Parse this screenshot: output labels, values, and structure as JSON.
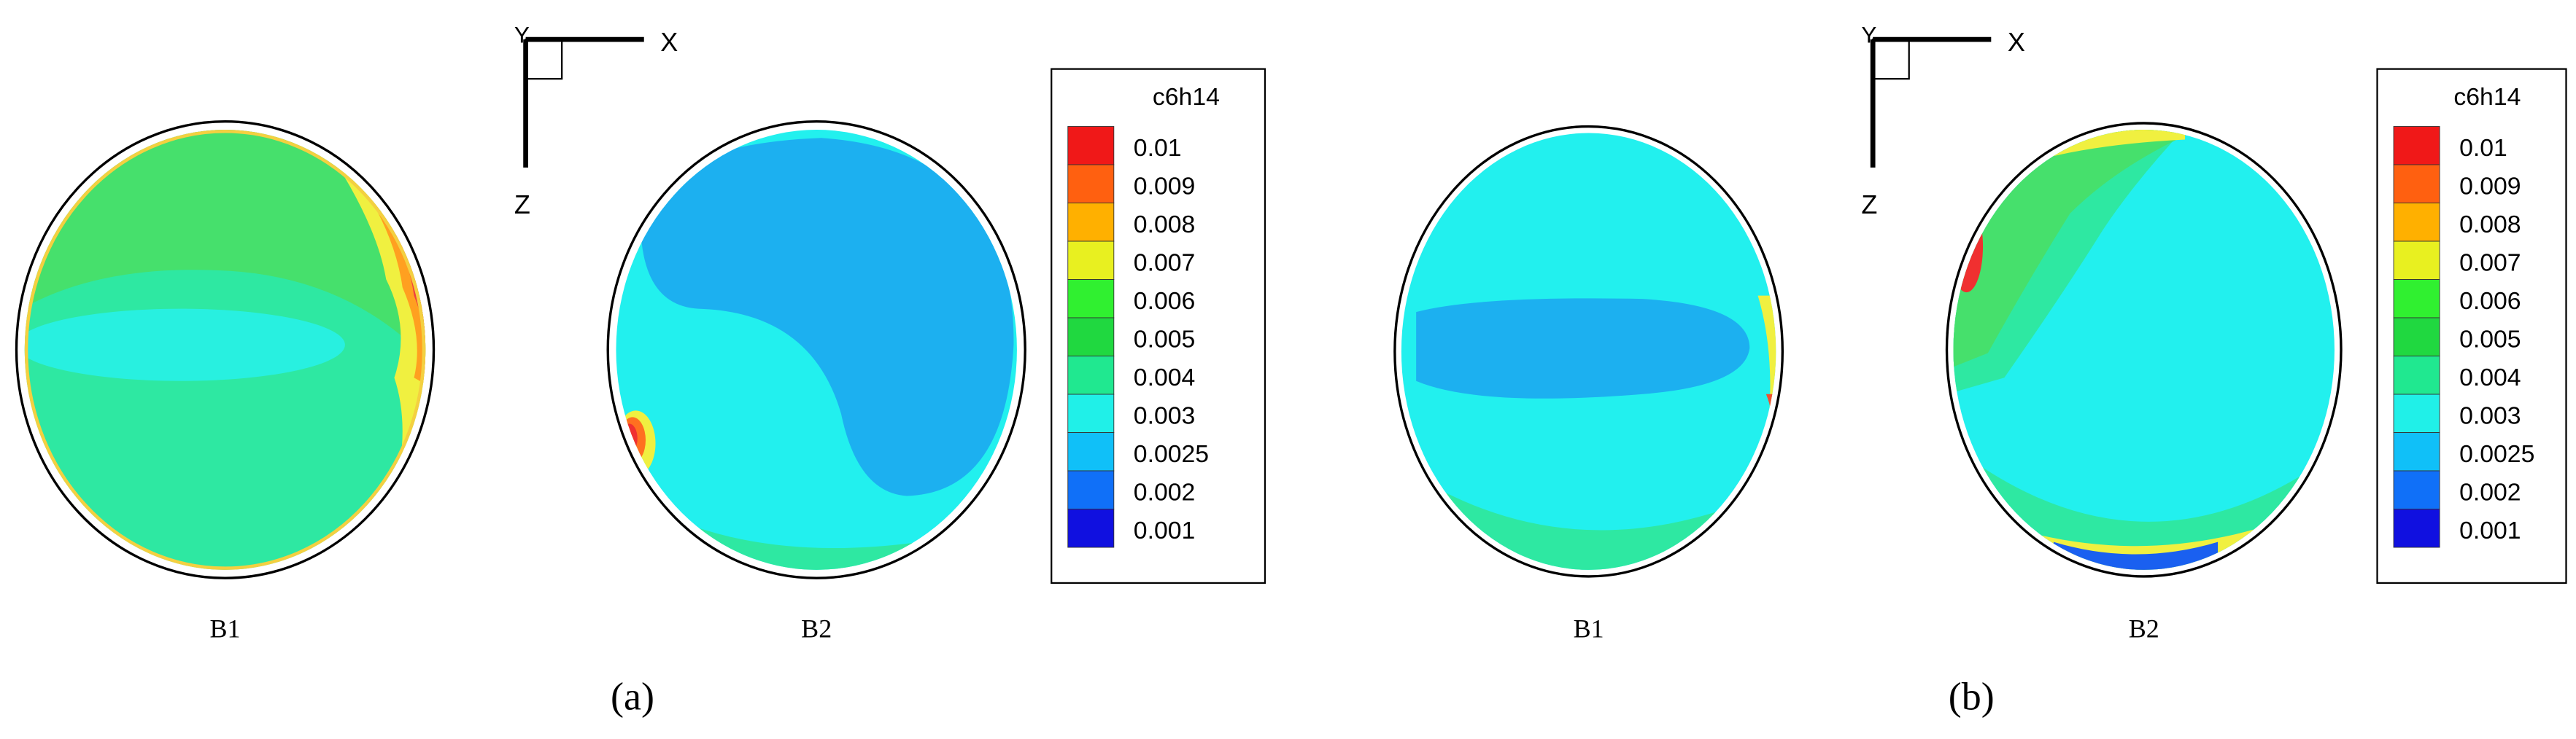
{
  "panels": [
    {
      "label": "(a)",
      "axes": {
        "x": "X",
        "y": "Y",
        "z": "Z"
      },
      "sections": [
        "B1",
        "B2"
      ],
      "legend": {
        "title": "c6h14",
        "levels": [
          0.01,
          0.009,
          0.008,
          0.007,
          0.006,
          0.005,
          0.004,
          0.003,
          0.0025,
          0.002,
          0.001
        ]
      }
    },
    {
      "label": "(b)",
      "axes": {
        "x": "X",
        "y": "Y",
        "z": "Z"
      },
      "sections": [
        "B1",
        "B2"
      ],
      "legend": {
        "title": "c6h14",
        "levels": [
          0.01,
          0.009,
          0.008,
          0.007,
          0.006,
          0.005,
          0.004,
          0.003,
          0.0025,
          0.002,
          0.001
        ]
      }
    }
  ]
}
